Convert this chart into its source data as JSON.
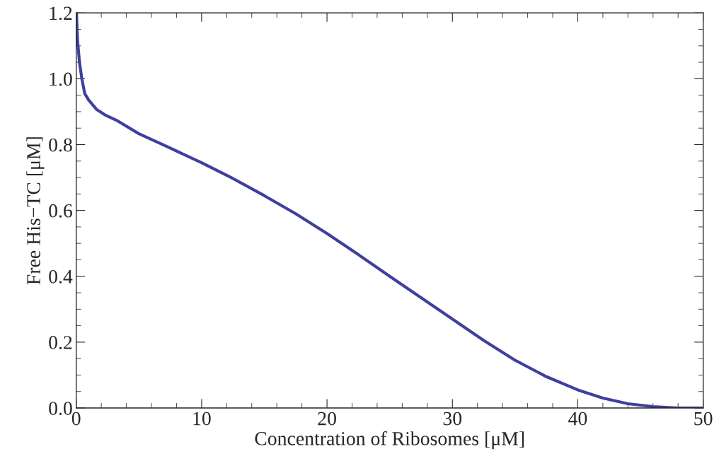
{
  "chart_data": {
    "type": "line",
    "xlabel": "Concentration of Ribosomes [μM]",
    "ylabel": "Free His−TC [μM]",
    "xlim": [
      0,
      50
    ],
    "ylim": [
      0,
      1.2
    ],
    "xticks": [
      0,
      10,
      20,
      30,
      40,
      50,
      {
        "value": 2,
        "label": null
      },
      {
        "value": 4,
        "label": null
      },
      {
        "value": 6,
        "label": null
      },
      {
        "value": 8,
        "label": null
      },
      {
        "value": 12,
        "label": null
      },
      {
        "value": 14,
        "label": null
      },
      {
        "value": 16,
        "label": null
      },
      {
        "value": 18,
        "label": null
      },
      {
        "value": 22,
        "label": null
      },
      {
        "value": 24,
        "label": null
      },
      {
        "value": 26,
        "label": null
      },
      {
        "value": 28,
        "label": null
      },
      {
        "value": 32,
        "label": null
      },
      {
        "value": 34,
        "label": null
      },
      {
        "value": 36,
        "label": null
      },
      {
        "value": 38,
        "label": null
      },
      {
        "value": 42,
        "label": null
      },
      {
        "value": 44,
        "label": null
      },
      {
        "value": 46,
        "label": null
      },
      {
        "value": 48,
        "label": null
      }
    ],
    "yticks": [
      {
        "value": 0,
        "label": "0.0"
      },
      {
        "value": 0.2,
        "label": "0.2"
      },
      {
        "value": 0.4,
        "label": "0.4"
      },
      {
        "value": 0.6,
        "label": "0.6"
      },
      {
        "value": 0.8,
        "label": "0.8"
      },
      {
        "value": 1.0,
        "label": "1.0"
      },
      {
        "value": 1.2,
        "label": "1.2"
      },
      {
        "value": 0.05,
        "label": null
      },
      {
        "value": 0.1,
        "label": null
      },
      {
        "value": 0.15,
        "label": null
      },
      {
        "value": 0.25,
        "label": null
      },
      {
        "value": 0.3,
        "label": null
      },
      {
        "value": 0.35,
        "label": null
      },
      {
        "value": 0.45,
        "label": null
      },
      {
        "value": 0.5,
        "label": null
      },
      {
        "value": 0.55,
        "label": null
      },
      {
        "value": 0.65,
        "label": null
      },
      {
        "value": 0.7,
        "label": null
      },
      {
        "value": 0.75,
        "label": null
      },
      {
        "value": 0.85,
        "label": null
      },
      {
        "value": 0.9,
        "label": null
      },
      {
        "value": 0.95,
        "label": null
      },
      {
        "value": 1.05,
        "label": null
      },
      {
        "value": 1.1,
        "label": null
      },
      {
        "value": 1.15,
        "label": null
      }
    ],
    "grid": false,
    "marker": "none",
    "line_style": "solid",
    "series": [
      {
        "color": "#3f3f9f",
        "x": [
          0.02,
          0.1,
          0.26,
          0.45,
          0.68,
          1.0,
          1.62,
          2.3,
          3.3,
          5.0,
          7.07,
          10.0,
          12.5,
          15.0,
          17.5,
          20.0,
          22.5,
          25.0,
          27.5,
          30.0,
          32.5,
          35.0,
          37.5,
          40.0,
          42.0,
          44.0,
          46.0,
          48.0,
          50.0
        ],
        "values": [
          1.2,
          1.12,
          1.05,
          1.0,
          0.955,
          0.935,
          0.907,
          0.89,
          0.872,
          0.833,
          0.797,
          0.745,
          0.697,
          0.645,
          0.59,
          0.53,
          0.466,
          0.4,
          0.335,
          0.27,
          0.205,
          0.145,
          0.095,
          0.055,
          0.03,
          0.013,
          0.004,
          0.0,
          0.0
        ]
      }
    ]
  }
}
